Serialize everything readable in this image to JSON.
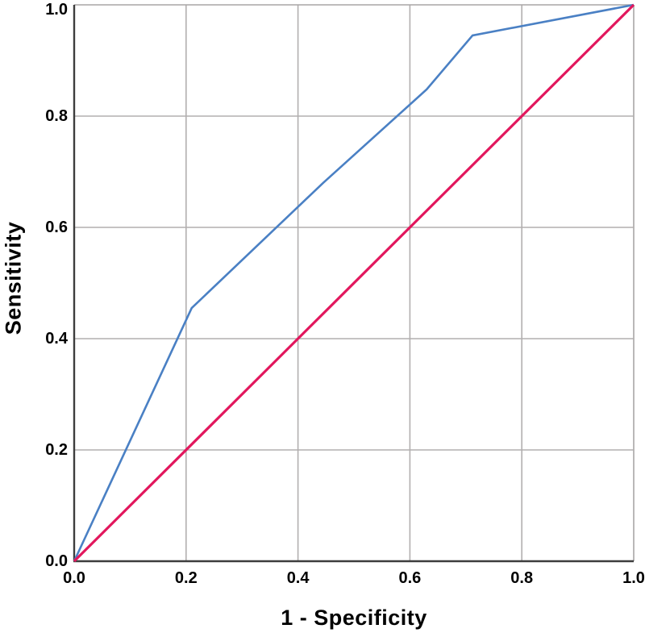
{
  "chart": {
    "x_axis_title": "1 - Specificity",
    "y_axis_title": "Sensitivity"
  },
  "chart_data": {
    "type": "line",
    "title": "",
    "xlabel": "1 - Specificity",
    "ylabel": "Sensitivity",
    "xlim": [
      0.0,
      1.0
    ],
    "ylim": [
      0.0,
      1.0
    ],
    "x_ticks": [
      "0.0",
      "0.2",
      "0.4",
      "0.6",
      "0.8",
      "1.0"
    ],
    "y_ticks": [
      "0.0",
      "0.2",
      "0.4",
      "0.6",
      "0.8",
      "1.0"
    ],
    "grid": true,
    "legend": "none",
    "colors": {
      "grid": "#b2afaf",
      "axis": "#3d3d3d",
      "frame": "#a9a6a6",
      "background": "#ffffff",
      "roc_curve": "#4a80c4",
      "reference_line": "#e2175d"
    },
    "series": [
      {
        "name": "roc_curve",
        "color": "#4a80c4",
        "stroke_width": 2.6,
        "points": [
          [
            0.0,
            0.0
          ],
          [
            0.21,
            0.455
          ],
          [
            0.445,
            0.68
          ],
          [
            0.63,
            0.848
          ],
          [
            0.712,
            0.945
          ],
          [
            1.0,
            1.0
          ]
        ]
      },
      {
        "name": "reference_line",
        "color": "#e2175d",
        "stroke_width": 3.2,
        "points": [
          [
            0.0,
            0.0
          ],
          [
            1.0,
            1.0
          ]
        ]
      }
    ]
  }
}
